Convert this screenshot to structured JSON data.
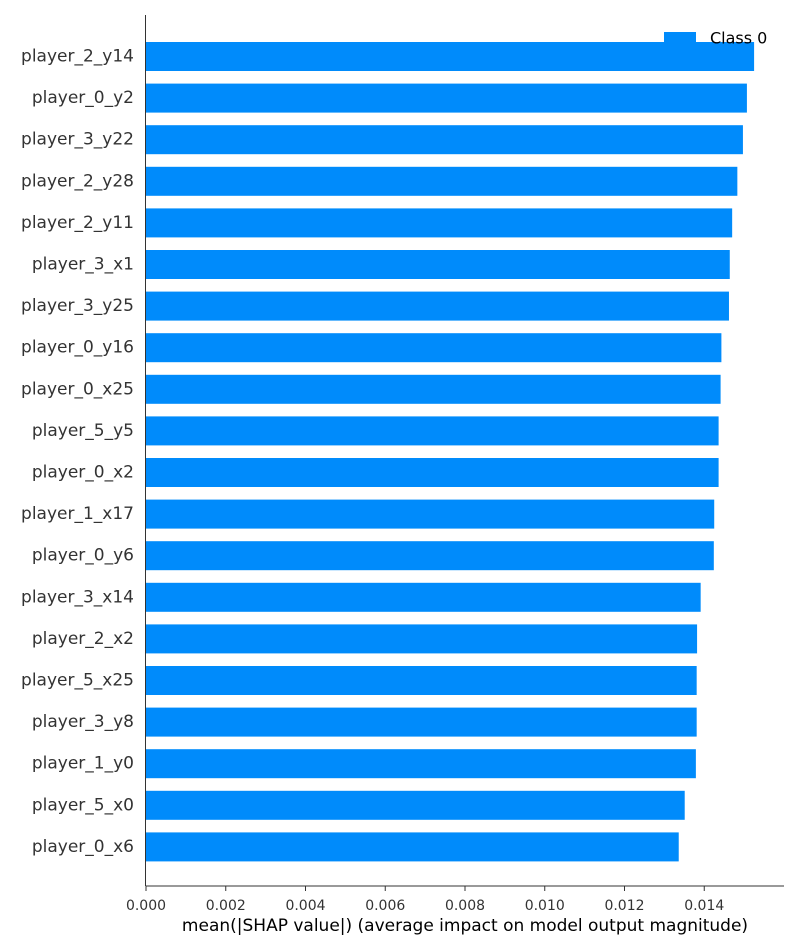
{
  "chart_data": {
    "type": "bar",
    "orientation": "horizontal",
    "categories": [
      "player_2_y14",
      "player_0_y2",
      "player_3_y22",
      "player_2_y28",
      "player_2_y11",
      "player_3_x1",
      "player_3_y25",
      "player_0_y16",
      "player_0_x25",
      "player_5_y5",
      "player_0_x2",
      "player_1_x17",
      "player_0_y6",
      "player_3_x14",
      "player_2_x2",
      "player_5_x25",
      "player_3_y8",
      "player_1_y0",
      "player_5_x0",
      "player_0_x6"
    ],
    "series": [
      {
        "name": "Class 0",
        "color": "#008bfb",
        "values": [
          0.01525,
          0.01507,
          0.01497,
          0.01483,
          0.0147,
          0.01464,
          0.01462,
          0.01443,
          0.01441,
          0.01436,
          0.01436,
          0.01425,
          0.01424,
          0.01391,
          0.01382,
          0.01381,
          0.01381,
          0.01379,
          0.01351,
          0.01336
        ]
      }
    ],
    "xlabel": "mean(|SHAP value|) (average impact on model output magnitude)",
    "ylabel": "",
    "xlim": [
      0,
      0.016
    ],
    "xticks": [
      0.0,
      0.002,
      0.004,
      0.006,
      0.008,
      0.01,
      0.012,
      0.014
    ],
    "xtick_labels": [
      "0.000",
      "0.002",
      "0.004",
      "0.006",
      "0.008",
      "0.010",
      "0.012",
      "0.014"
    ],
    "grid": false,
    "legend": {
      "position": "top-right",
      "entries": [
        "Class 0"
      ]
    }
  }
}
